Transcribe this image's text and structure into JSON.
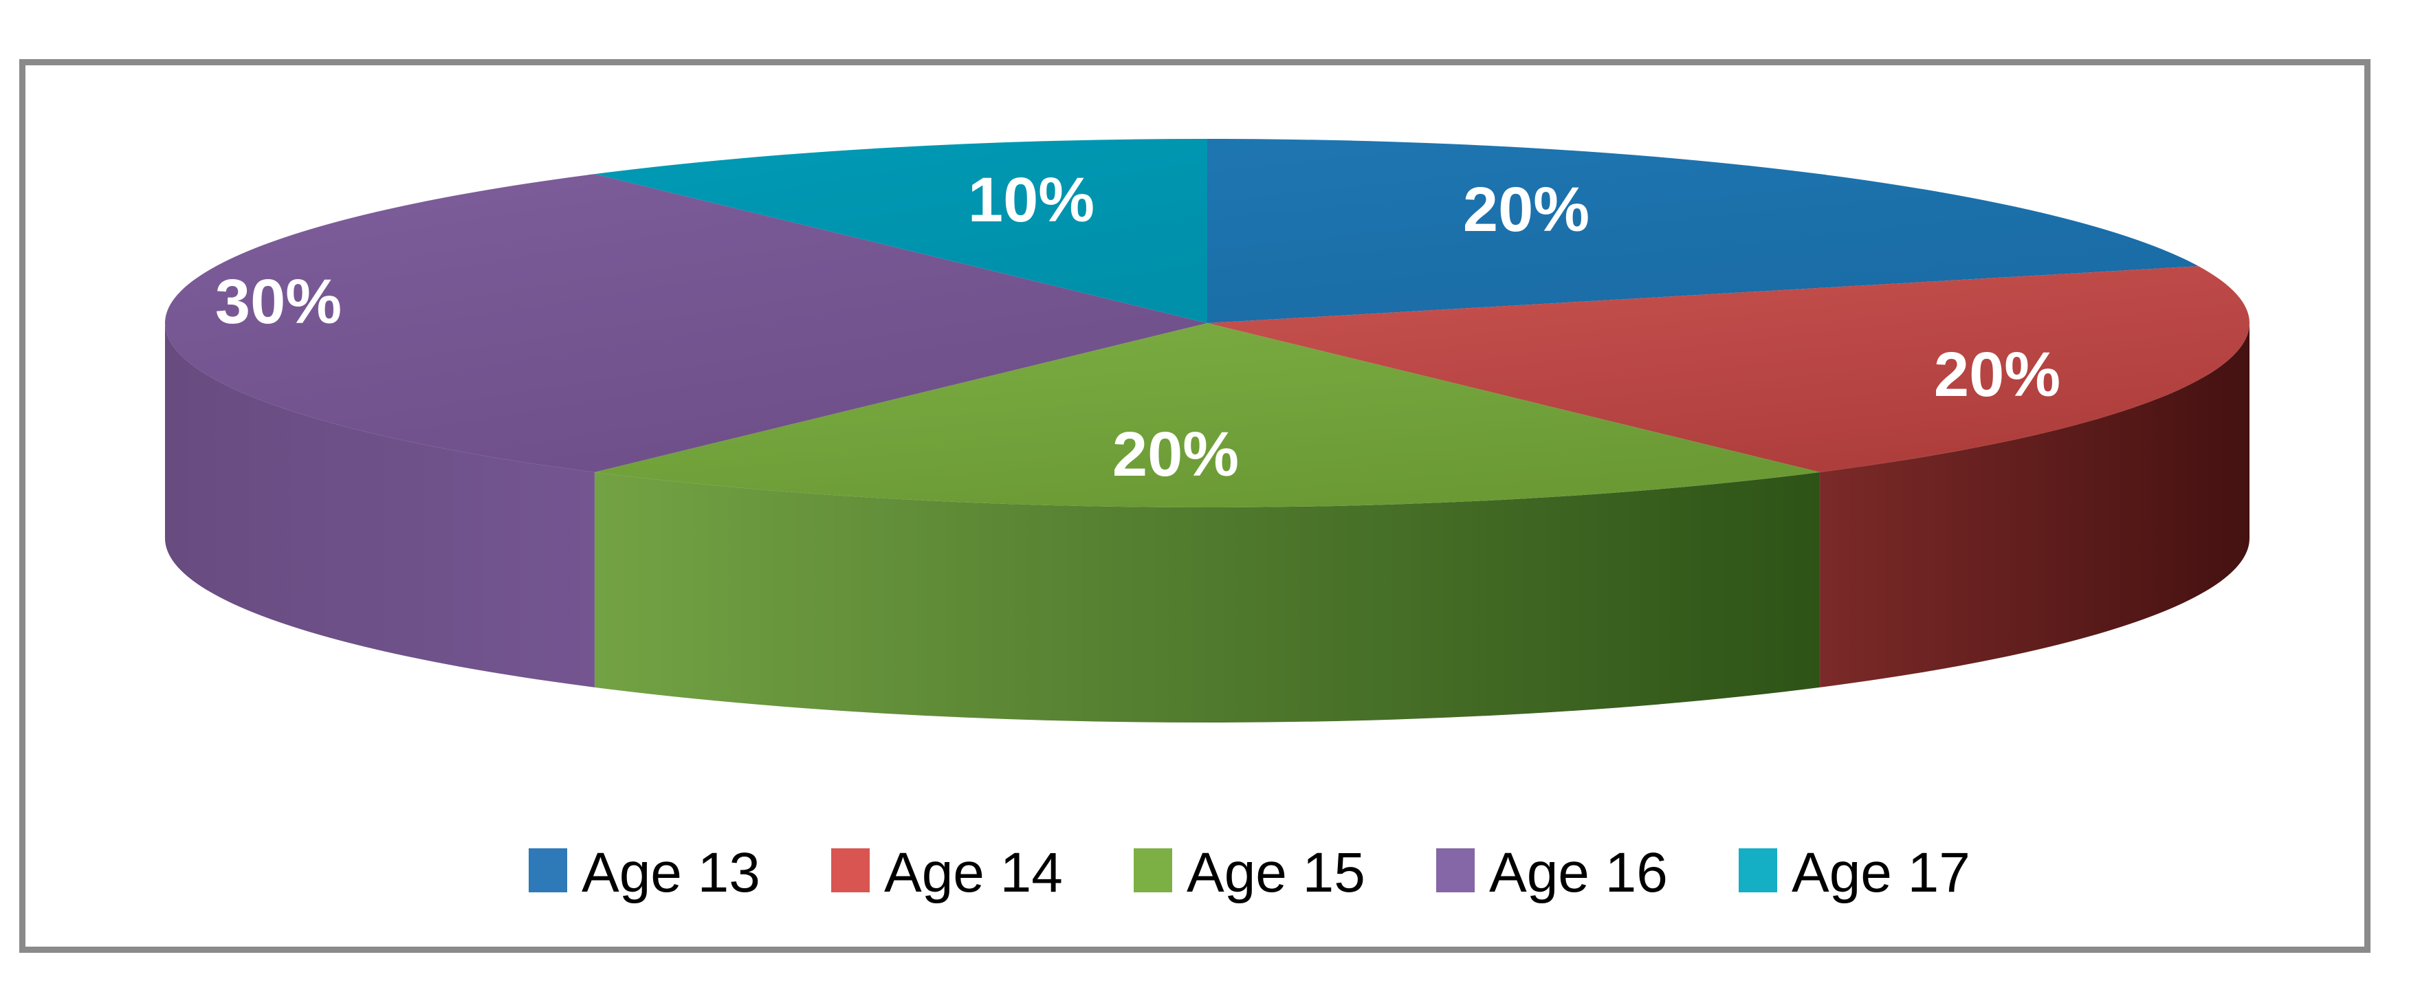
{
  "window": {
    "background": "#FFFFFF",
    "frame_border_color": "#8A8A8A"
  },
  "chart_data": {
    "type": "pie",
    "style": "3d",
    "title": "",
    "categories": [
      "Age 13",
      "Age 14",
      "Age 15",
      "Age 16",
      "Age 17"
    ],
    "values": [
      20,
      20,
      20,
      30,
      10
    ],
    "data_labels": [
      "20%",
      "20%",
      "20%",
      "30%",
      "10%"
    ],
    "unit": "percent",
    "start_angle_deg": 0,
    "direction": "clockwise",
    "legend_position": "bottom",
    "data_label_color": "#FFFFFF",
    "series": [
      {
        "name": "Age 13",
        "value": 20,
        "label": "20%",
        "top_color": "#1E76B1",
        "top_color2": "#1A6CA5",
        "legend_color": "#2E79B7"
      },
      {
        "name": "Age 14",
        "value": 20,
        "label": "20%",
        "top_color": "#C95351",
        "top_color2": "#AE3E3C",
        "side_color_left": "#7B2A28",
        "side_color_right": "#451111",
        "legend_color": "#D95552"
      },
      {
        "name": "Age 15",
        "value": 20,
        "label": "20%",
        "top_color": "#7CAD43",
        "top_color2": "#6B9A35",
        "side_color_left": "#73A244",
        "side_color_right": "#2E5317",
        "legend_color": "#7DB044"
      },
      {
        "name": "Age 16",
        "value": 30,
        "label": "30%",
        "top_color": "#7E5E9B",
        "top_color2": "#6F4F89",
        "side_color_left": "#684C80",
        "side_color_right": "#745591",
        "legend_color": "#8566A6"
      },
      {
        "name": "Age 17",
        "value": 10,
        "label": "10%",
        "top_color": "#009AB5",
        "top_color2": "#0090AA",
        "legend_color": "#14AEC5"
      }
    ]
  }
}
